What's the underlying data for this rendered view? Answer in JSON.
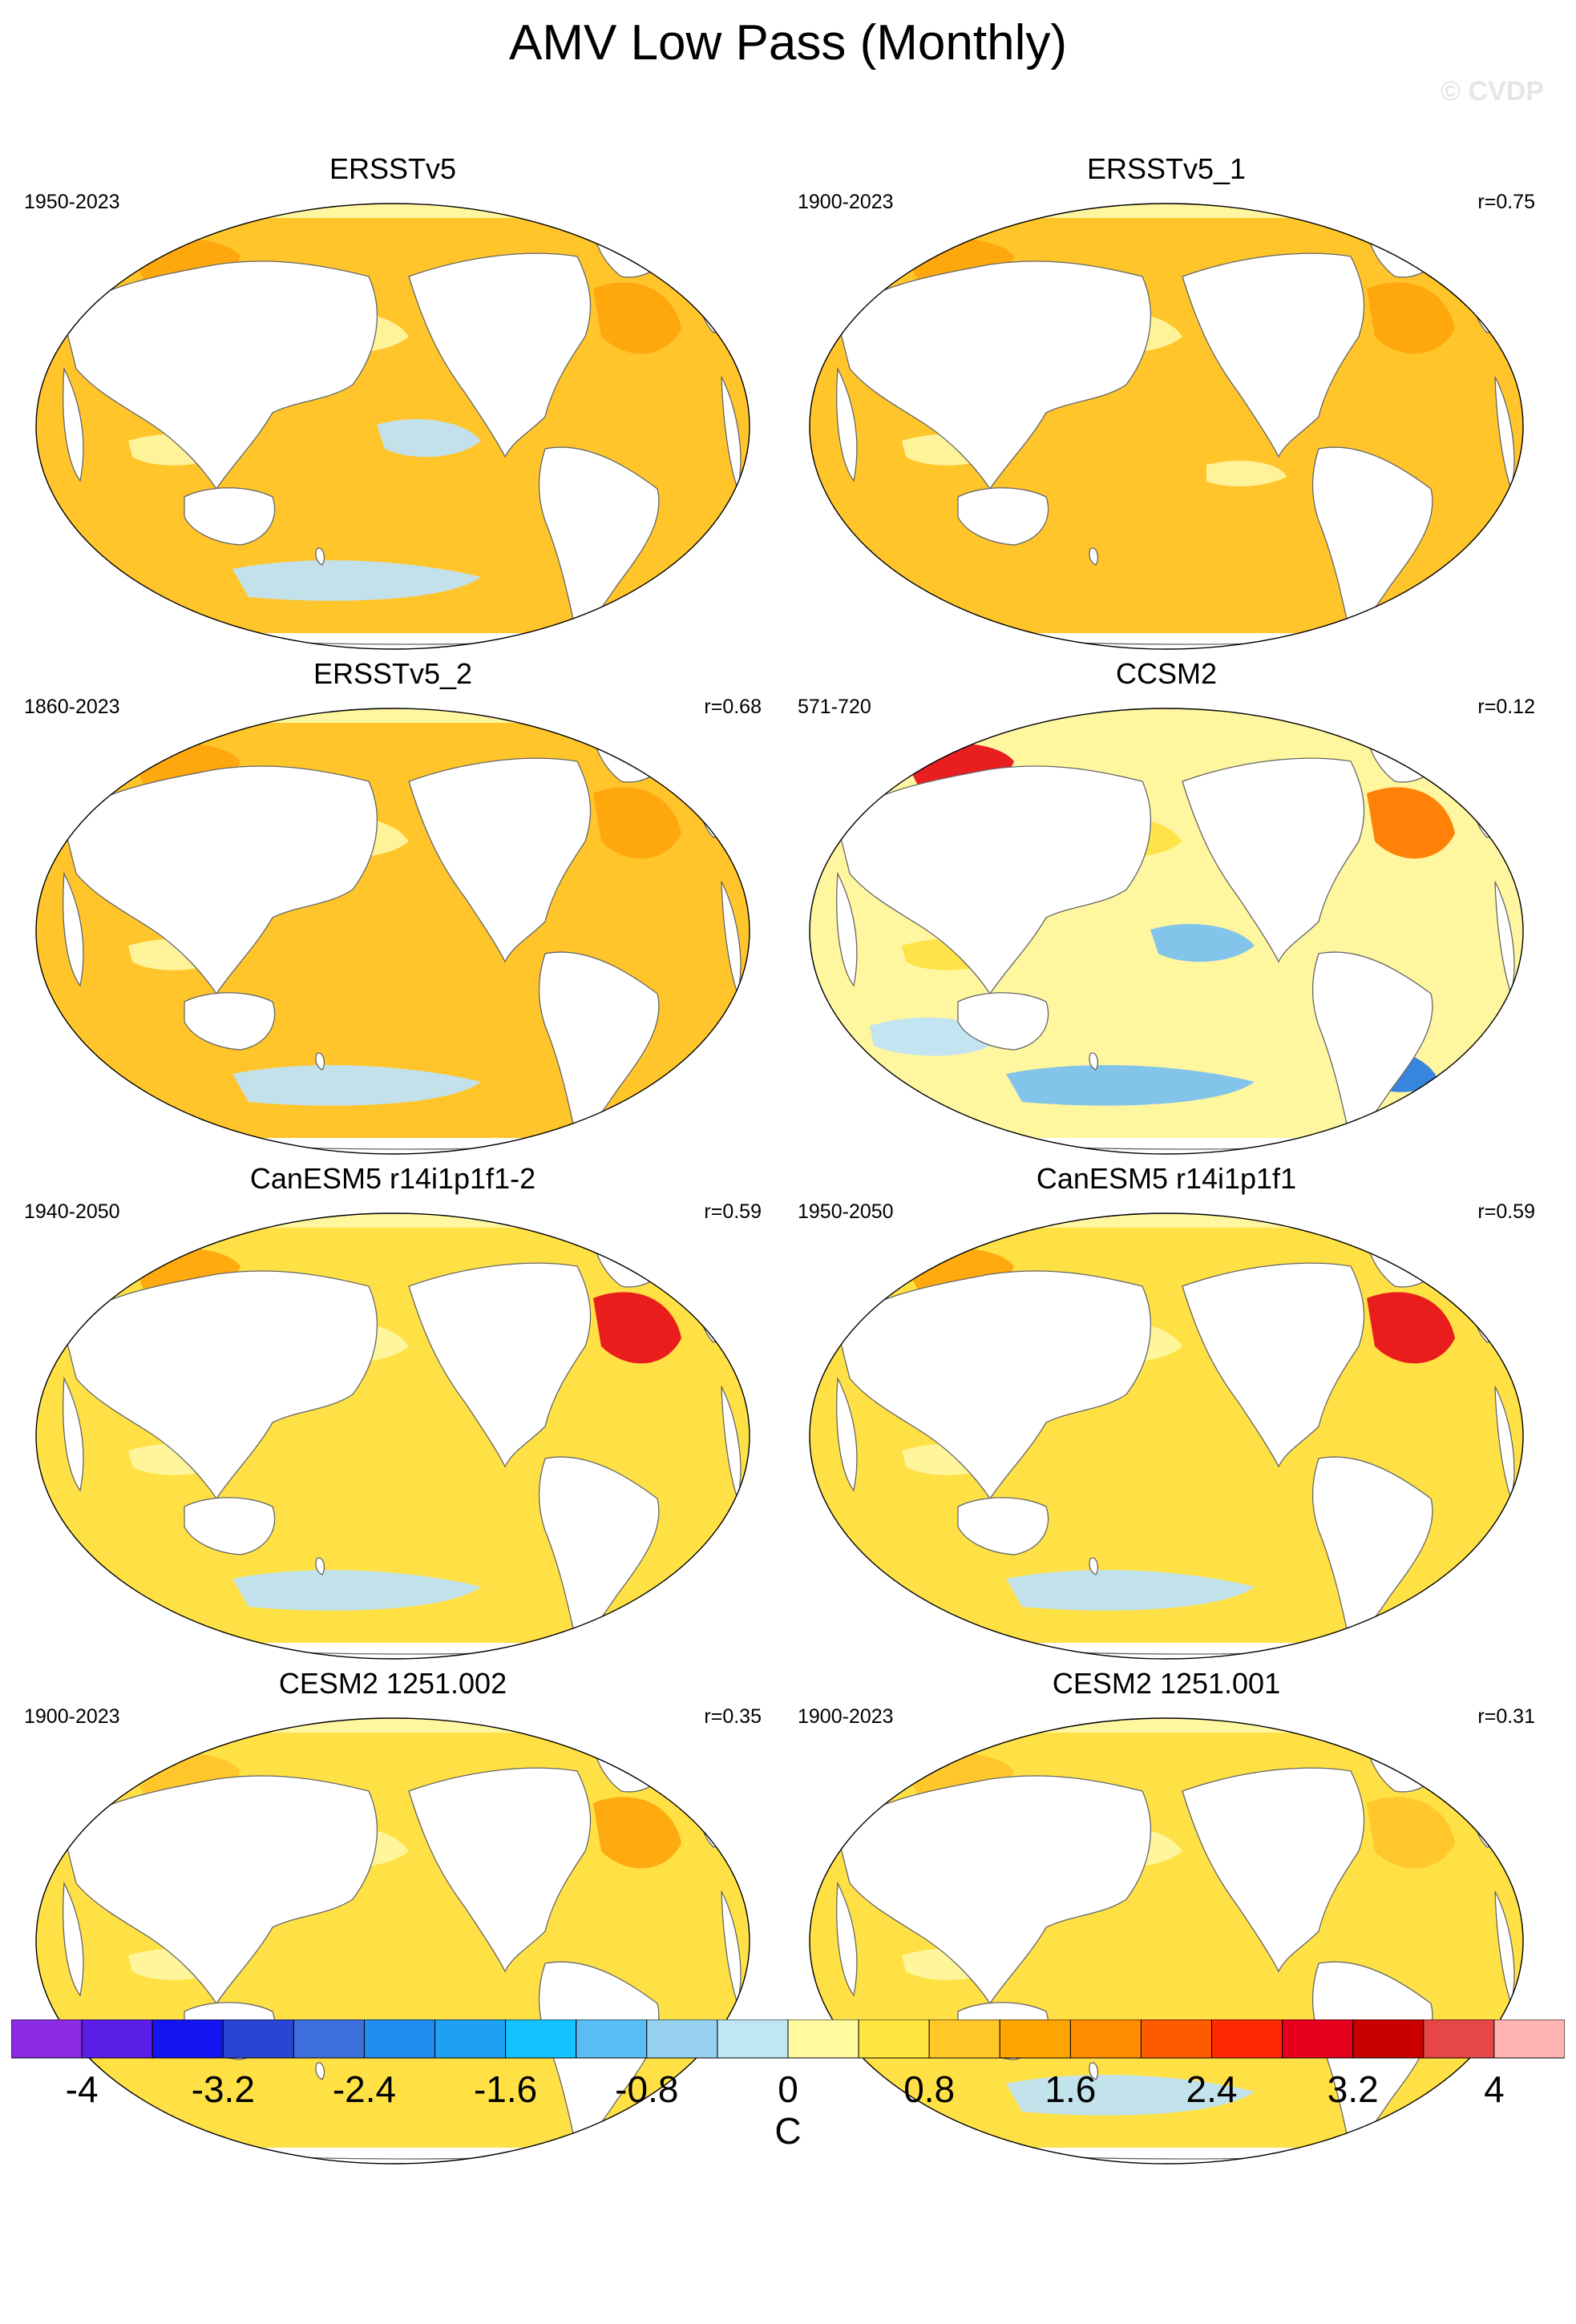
{
  "title": "AMV Low Pass (Monthly)",
  "watermark": "© CVDP",
  "panels": [
    {
      "title": "ERSSTv5",
      "years": "1950-2023",
      "r": ""
    },
    {
      "title": "ERSSTv5_1",
      "years": "1900-2023",
      "r": "r=0.75"
    },
    {
      "title": "ERSSTv5_2",
      "years": "1860-2023",
      "r": "r=0.68"
    },
    {
      "title": "CCSM2",
      "years": "571-720",
      "r": "r=0.12"
    },
    {
      "title": "CanESM5 r14i1p1f1-2",
      "years": "1940-2050",
      "r": "r=0.59"
    },
    {
      "title": "CanESM5 r14i1p1f1",
      "years": "1950-2050",
      "r": "r=0.59"
    },
    {
      "title": "CESM2 1251.002",
      "years": "1900-2023",
      "r": "r=0.35"
    },
    {
      "title": "CESM2 1251.001",
      "years": "1900-2023",
      "r": "r=0.31"
    }
  ],
  "colorbar": {
    "unit": "C",
    "tick_labels": [
      "-4",
      "-3.2",
      "-2.4",
      "-1.6",
      "-0.8",
      "0",
      "0.8",
      "1.6",
      "2.4",
      "3.2",
      "4"
    ],
    "tick_values": [
      -4,
      -3.2,
      -2.4,
      -1.6,
      -0.8,
      0,
      0.8,
      1.6,
      2.4,
      3.2,
      4
    ],
    "range": [
      -4.4,
      4.4
    ],
    "colors": [
      "#8c2be6",
      "#5a1ee6",
      "#1414f0",
      "#2846d2",
      "#3c6edc",
      "#1e8cf0",
      "#1ea0f5",
      "#14c3ff",
      "#5abef5",
      "#96d2f0",
      "#bee6f5",
      "#fffaa0",
      "#ffe641",
      "#ffc828",
      "#ffa500",
      "#ff8c00",
      "#ff5a00",
      "#ff2800",
      "#e6001e",
      "#c80000",
      "#e64646",
      "#ffb4b4"
    ]
  },
  "palette": {
    "land": "#ffffff",
    "coast": "#666666",
    "warm_light": "#fff6a0",
    "warm_yellow": "#ffe145",
    "warm_gold": "#ffc52a",
    "warm_orange": "#ffa60c",
    "warm_deep": "#ff7a00",
    "hot_red": "#e8121a",
    "cool_pale": "#c0e3f5",
    "cool_blue": "#7cc2ee",
    "cool_deep": "#2d7ee0"
  },
  "panel_anomalies": [
    {
      "base": "warm_gold",
      "warm": [
        "warm_orange",
        "warm_orange",
        "warm_deep"
      ],
      "cool": [
        "cool_pale",
        "cool_pale"
      ],
      "light": [
        "warm_light",
        "warm_light"
      ]
    },
    {
      "base": "warm_gold",
      "warm": [
        "warm_orange",
        "warm_orange",
        "warm_orange"
      ],
      "cool": [],
      "light": [
        "warm_light",
        "warm_light",
        "warm_light"
      ]
    },
    {
      "base": "warm_gold",
      "warm": [
        "warm_orange",
        "warm_orange",
        "warm_deep"
      ],
      "cool": [
        "cool_pale"
      ],
      "light": [
        "warm_light",
        "warm_light"
      ]
    },
    {
      "base": "warm_light",
      "warm": [
        "hot_red",
        "warm_deep",
        "warm_gold"
      ],
      "cool": [
        "cool_blue",
        "cool_blue",
        "cool_deep",
        "cool_pale"
      ],
      "light": [
        "warm_yellow",
        "warm_yellow"
      ]
    },
    {
      "base": "warm_yellow",
      "warm": [
        "warm_orange",
        "hot_red",
        "warm_gold"
      ],
      "cool": [
        "cool_pale"
      ],
      "light": [
        "warm_light",
        "warm_light"
      ]
    },
    {
      "base": "warm_yellow",
      "warm": [
        "warm_orange",
        "hot_red",
        "warm_gold"
      ],
      "cool": [
        "cool_pale"
      ],
      "light": [
        "warm_light",
        "warm_light"
      ]
    },
    {
      "base": "warm_yellow",
      "warm": [
        "warm_gold",
        "warm_orange",
        "warm_gold"
      ],
      "cool": [],
      "light": [
        "warm_light",
        "warm_light"
      ]
    },
    {
      "base": "warm_yellow",
      "warm": [
        "warm_gold",
        "warm_gold",
        "warm_orange"
      ],
      "cool": [
        "cool_pale"
      ],
      "light": [
        "warm_light",
        "warm_light"
      ]
    }
  ]
}
